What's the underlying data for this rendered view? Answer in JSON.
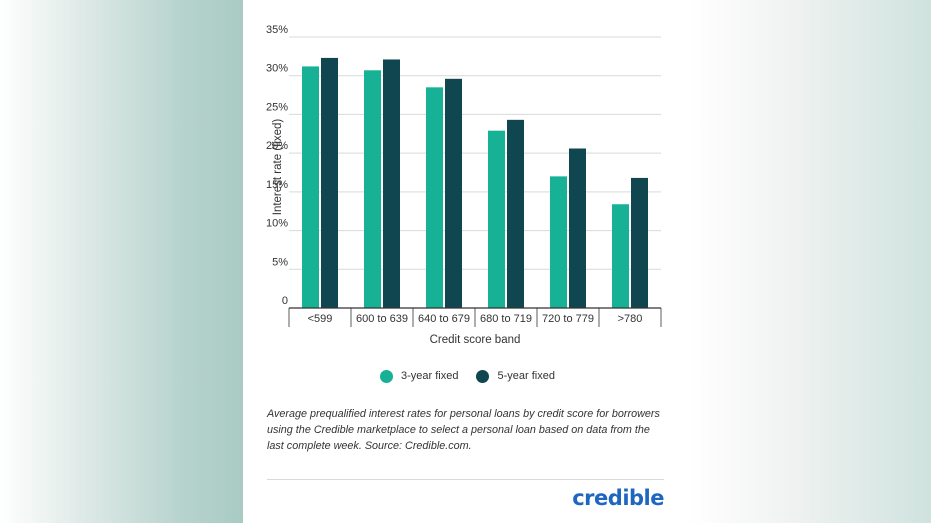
{
  "chart_data": {
    "type": "bar",
    "categories": [
      "<599",
      "600 to 639",
      "640 to 679",
      "680 to 719",
      "720 to 779",
      ">780"
    ],
    "series": [
      {
        "name": "3-year fixed",
        "color": "#17b196",
        "values": [
          31.2,
          30.7,
          28.5,
          22.9,
          17.0,
          13.4
        ]
      },
      {
        "name": "5-year fixed",
        "color": "#0f4650",
        "values": [
          32.3,
          32.1,
          29.6,
          24.3,
          20.6,
          16.8
        ]
      }
    ],
    "xlabel": "Credit score band",
    "ylabel": "Interest rate (fixed)",
    "ylim": [
      0,
      35
    ],
    "yticks": [
      0,
      5,
      10,
      15,
      20,
      25,
      30,
      35
    ],
    "ytick_labels": [
      "0",
      "5%",
      "10%",
      "15%",
      "20%",
      "25%",
      "30%",
      "35%"
    ],
    "grid": true,
    "legend_position": "bottom"
  },
  "caption": "Average prequalified interest rates for personal loans by credit score for borrowers using the Credible marketplace to select a personal loan based on data from the last complete week. Source: Credible.com.",
  "logo": {
    "text": "credible",
    "color": "#1f66c1"
  }
}
